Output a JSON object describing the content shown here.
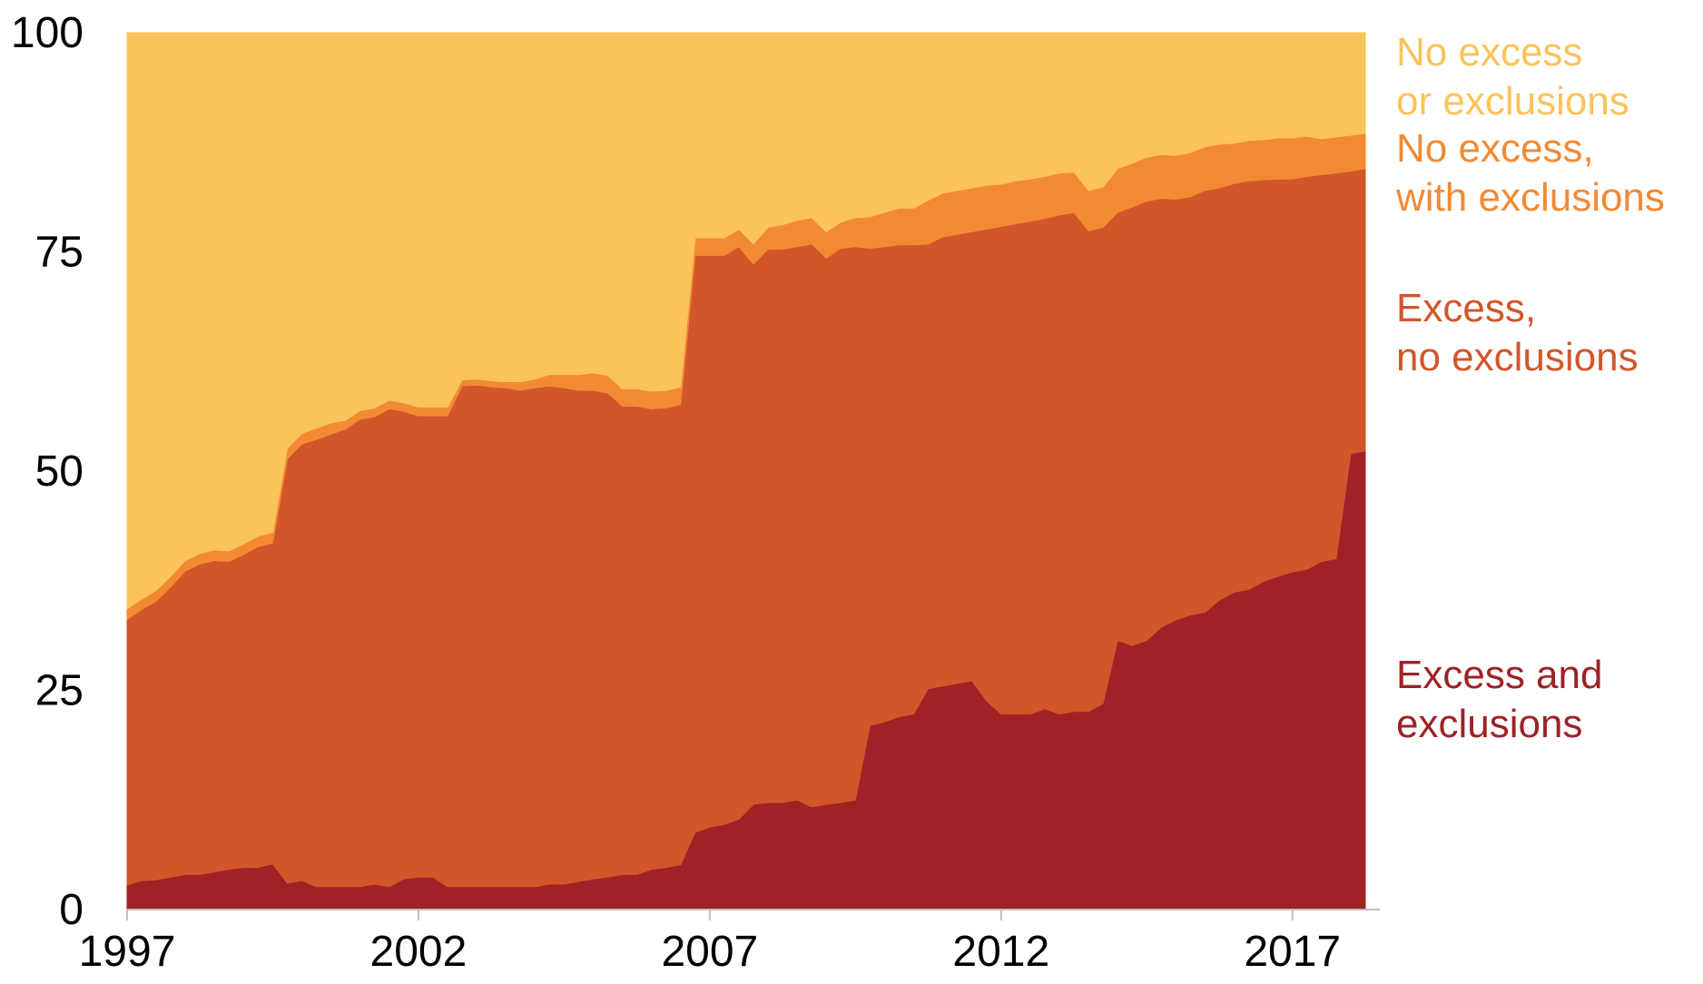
{
  "chart_data": {
    "type": "area",
    "stacked": true,
    "title": "",
    "xlabel": "",
    "ylabel": "",
    "xlim": [
      1997,
      2018.5
    ],
    "ylim": [
      0,
      100
    ],
    "x_ticks": [
      "1997",
      "2002",
      "2007",
      "2012",
      "2017"
    ],
    "y_ticks": [
      "0",
      "25",
      "50",
      "75",
      "100"
    ],
    "legend_placement": "right",
    "x": [
      1997.0,
      1997.25,
      1997.5,
      1997.75,
      1998.0,
      1998.25,
      1998.5,
      1998.75,
      1999.0,
      1999.25,
      1999.5,
      1999.75,
      2000.0,
      2000.25,
      2000.5,
      2000.75,
      2001.0,
      2001.25,
      2001.5,
      2001.75,
      2002.0,
      2002.25,
      2002.5,
      2002.75,
      2003.0,
      2003.25,
      2003.5,
      2003.75,
      2004.0,
      2004.25,
      2004.5,
      2004.75,
      2005.0,
      2005.25,
      2005.5,
      2005.75,
      2006.0,
      2006.25,
      2006.5,
      2006.75,
      2007.0,
      2007.25,
      2007.5,
      2007.75,
      2008.0,
      2008.25,
      2008.5,
      2008.75,
      2009.0,
      2009.25,
      2009.5,
      2009.75,
      2010.0,
      2010.25,
      2010.5,
      2010.75,
      2011.0,
      2011.25,
      2011.5,
      2011.75,
      2012.0,
      2012.25,
      2012.5,
      2012.75,
      2013.0,
      2013.25,
      2013.5,
      2013.75,
      2014.0,
      2014.25,
      2014.5,
      2014.75,
      2015.0,
      2015.25,
      2015.5,
      2015.75,
      2016.0,
      2016.25,
      2016.5,
      2016.75,
      2017.0,
      2017.25,
      2017.5,
      2017.75,
      2018.0,
      2018.25
    ],
    "series": [
      {
        "name": "Excess and exclusions",
        "color": "#9e2226",
        "values": [
          2.8,
          3.3,
          3.4,
          3.7,
          4.0,
          4.0,
          4.3,
          4.6,
          4.8,
          4.8,
          5.2,
          3.0,
          3.3,
          2.6,
          2.6,
          2.6,
          2.6,
          2.9,
          2.6,
          3.5,
          3.7,
          3.7,
          2.6,
          2.6,
          2.6,
          2.6,
          2.6,
          2.6,
          2.6,
          2.9,
          2.9,
          3.2,
          3.5,
          3.7,
          4.0,
          4.0,
          4.6,
          4.8,
          5.1,
          8.8,
          9.4,
          9.7,
          10.3,
          12.0,
          12.2,
          12.2,
          12.5,
          11.7,
          12.0,
          12.2,
          12.5,
          21.0,
          21.4,
          22.0,
          22.3,
          25.2,
          25.5,
          25.8,
          26.1,
          23.8,
          22.3,
          22.3,
          22.3,
          22.9,
          22.3,
          22.6,
          22.6,
          23.5,
          30.7,
          30.1,
          30.7,
          32.2,
          33.0,
          33.6,
          33.9,
          35.3,
          36.2,
          36.5,
          37.4,
          38.0,
          38.5,
          38.8,
          39.7,
          40.0,
          52.0,
          52.3
        ]
      },
      {
        "name": "Excess, no exclusions",
        "color": "#d2562a",
        "values": [
          30.3,
          30.9,
          31.8,
          33.1,
          34.6,
          35.4,
          35.5,
          35.1,
          35.7,
          36.6,
          36.6,
          48.4,
          49.8,
          51.0,
          51.6,
          52.2,
          53.3,
          53.3,
          54.5,
          53.3,
          52.6,
          52.6,
          53.7,
          57.1,
          57.2,
          57.0,
          56.9,
          56.6,
          56.9,
          56.8,
          56.6,
          56.0,
          55.7,
          55.2,
          53.4,
          53.4,
          52.5,
          52.4,
          52.5,
          65.8,
          65.2,
          64.9,
          65.3,
          61.6,
          63.1,
          63.1,
          63.1,
          64.2,
          62.3,
          63.2,
          63.1,
          54.4,
          54.2,
          53.8,
          53.5,
          50.7,
          51.2,
          51.2,
          51.2,
          53.8,
          55.6,
          55.9,
          56.2,
          55.9,
          56.9,
          56.9,
          54.8,
          54.3,
          48.8,
          50.0,
          50.1,
          48.9,
          48.0,
          47.7,
          48.1,
          47.0,
          46.6,
          46.6,
          45.8,
          45.3,
          44.8,
          44.8,
          44.1,
          44.0,
          32.2,
          32.2
        ]
      },
      {
        "name": "No excess, with exclusions",
        "color": "#f28a34",
        "values": [
          1.2,
          1.2,
          1.2,
          1.2,
          1.2,
          1.2,
          1.2,
          1.2,
          1.2,
          1.2,
          1.2,
          1.2,
          1.2,
          1.3,
          1.3,
          1.0,
          1.0,
          1.0,
          1.0,
          1.0,
          1.0,
          1.0,
          1.0,
          0.7,
          0.7,
          0.7,
          0.7,
          1.0,
          1.0,
          1.3,
          1.5,
          1.8,
          2.0,
          2.0,
          2.0,
          2.0,
          2.0,
          2.0,
          2.0,
          2.0,
          2.0,
          2.0,
          2.0,
          2.3,
          2.5,
          2.8,
          3.0,
          3.0,
          3.0,
          3.0,
          3.3,
          3.6,
          3.9,
          4.2,
          4.2,
          5.0,
          5.0,
          5.0,
          5.0,
          5.0,
          4.8,
          4.9,
          4.8,
          4.8,
          4.8,
          4.6,
          4.6,
          4.6,
          5.0,
          5.0,
          5.0,
          5.0,
          5.0,
          5.0,
          5.0,
          5.0,
          4.6,
          4.6,
          4.6,
          4.7,
          4.7,
          4.6,
          4.1,
          4.1,
          4.1,
          4.0
        ]
      },
      {
        "name": "No excess or exclusions",
        "color": "#fcc35b",
        "values": [
          65.7,
          64.6,
          63.6,
          62.0,
          60.2,
          59.4,
          59.0,
          59.1,
          58.3,
          57.4,
          57.0,
          47.4,
          45.7,
          45.1,
          44.5,
          44.2,
          43.1,
          42.8,
          41.9,
          42.2,
          42.7,
          42.7,
          42.7,
          39.6,
          39.5,
          39.7,
          39.8,
          39.8,
          39.5,
          39.0,
          39.0,
          39.0,
          38.8,
          39.1,
          40.6,
          40.6,
          40.9,
          40.8,
          40.4,
          23.4,
          23.4,
          23.4,
          22.4,
          24.1,
          22.2,
          21.9,
          21.4,
          21.1,
          22.7,
          21.6,
          21.1,
          21.0,
          20.5,
          20.0,
          20.0,
          19.1,
          18.3,
          18.0,
          17.7,
          17.4,
          17.3,
          16.9,
          16.7,
          16.4,
          16.0,
          15.9,
          18.0,
          17.6,
          15.5,
          14.9,
          14.2,
          13.9,
          14.0,
          13.7,
          13.0,
          12.7,
          12.6,
          12.3,
          12.2,
          12.0,
          12.0,
          11.8,
          12.1,
          11.9,
          11.7,
          11.5
        ]
      }
    ]
  },
  "legend": [
    {
      "lines": [
        "No excess",
        "or exclusions"
      ],
      "color": "#fcc35b"
    },
    {
      "lines": [
        "No excess,",
        "with exclusions"
      ],
      "color": "#f28a34"
    },
    {
      "lines": [
        "Excess,",
        "no exclusions"
      ],
      "color": "#d2562a"
    },
    {
      "lines": [
        "Excess and",
        "exclusions"
      ],
      "color": "#9e2226"
    }
  ]
}
